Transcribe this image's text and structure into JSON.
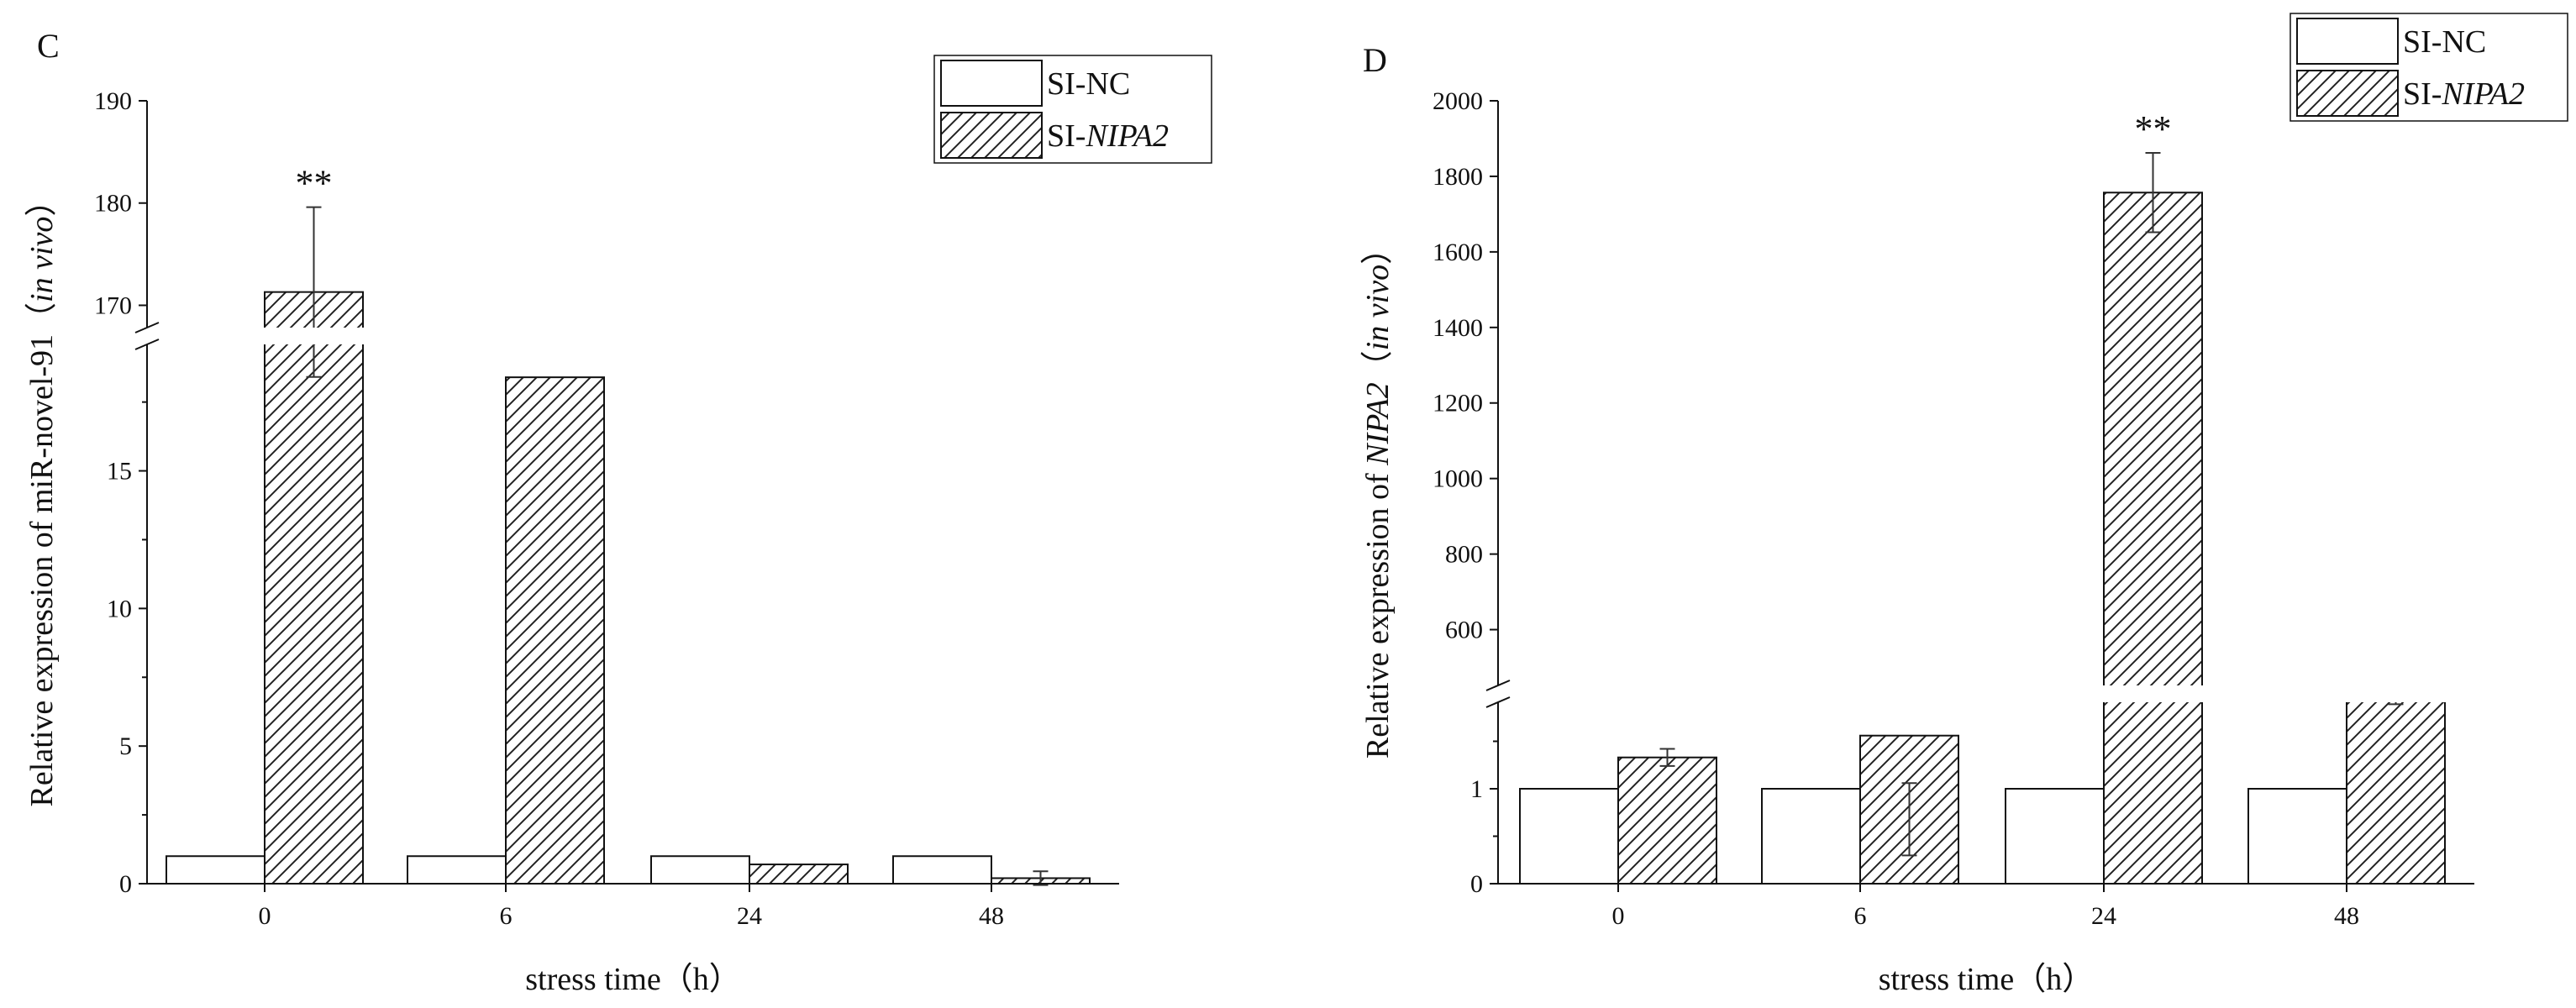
{
  "chart_data": [
    {
      "panel_label": "C",
      "type": "bar",
      "categories": [
        "0",
        "6",
        "24",
        "48"
      ],
      "series": [
        {
          "name": "SI-NC",
          "values": [
            1,
            1,
            1,
            1
          ],
          "errors": [
            0,
            0,
            0,
            0
          ]
        },
        {
          "name": "SI-NIPA2",
          "values": [
            171.3,
            18.4,
            0.7,
            0.2
          ],
          "errors": [
            8.3,
            0,
            0,
            0.25
          ]
        }
      ],
      "significance": [
        "**",
        "",
        "",
        ""
      ],
      "xlabel": "stress time（h）",
      "ylabel_prefix": "Relative expression of miR-novel-91（",
      "ylabel_italic": "in vivo",
      "ylabel_suffix": "）",
      "legend": {
        "placement": "top-right",
        "items": [
          {
            "prefix": "SI-NC",
            "italic": ""
          },
          {
            "prefix": "SI-",
            "italic": "NIPA2"
          }
        ]
      },
      "axis": {
        "broken": true,
        "lower": {
          "range": [
            0,
            19.9
          ],
          "ticks": [
            0,
            5,
            10,
            15
          ]
        },
        "upper": {
          "range": [
            167,
            190
          ],
          "ticks": [
            170,
            180,
            190
          ]
        }
      }
    },
    {
      "panel_label": "D",
      "type": "bar",
      "categories": [
        "0",
        "6",
        "24",
        "48"
      ],
      "series": [
        {
          "name": "SI-NC",
          "values": [
            1,
            1,
            1,
            1
          ],
          "errors": [
            0,
            0,
            0,
            0
          ]
        },
        {
          "name": "SI-NIPA2",
          "values": [
            1.33,
            1.56,
            1757,
            1.94
          ],
          "errors": [
            0.09,
            0.5,
            105,
            0.05
          ]
        }
      ],
      "significance": [
        "",
        "",
        "**",
        ""
      ],
      "xlabel": "stress time（h）",
      "ylabel_prefix": "Relative expression of ",
      "ylabel_italic": "NIPA2",
      "ylabel_middle": "（",
      "ylabel_italic2": "in vivo",
      "ylabel_suffix": "）",
      "legend": {
        "placement": "top-right",
        "items": [
          {
            "prefix": "SI-NC",
            "italic": ""
          },
          {
            "prefix": "SI-",
            "italic": "NIPA2"
          }
        ]
      },
      "axis": {
        "broken": true,
        "lower": {
          "range": [
            0,
            2
          ],
          "ticks": [
            0,
            1
          ]
        },
        "upper": {
          "range": [
            430,
            2000
          ],
          "ticks": [
            600,
            800,
            1000,
            1200,
            1400,
            1600,
            1800,
            2000
          ]
        }
      }
    }
  ]
}
